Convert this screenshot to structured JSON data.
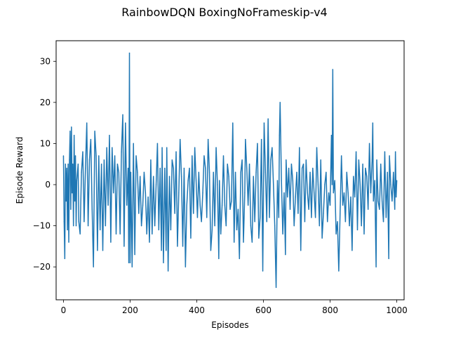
{
  "chart_data": {
    "type": "line",
    "title": "RainbowDQN  BoxingNoFrameskip-v4",
    "xlabel": "Episodes",
    "ylabel": "Episode Reward",
    "xlim": [
      -22,
      1022
    ],
    "ylim": [
      -28,
      35
    ],
    "x_ticks": [
      0,
      200,
      400,
      600,
      800,
      1000
    ],
    "y_ticks": [
      -20,
      -10,
      0,
      10,
      20,
      30
    ],
    "grid": false,
    "series": [
      {
        "color": "#1f77b4",
        "points": [
          [
            0,
            7
          ],
          [
            2,
            -9
          ],
          [
            4,
            -18
          ],
          [
            6,
            5
          ],
          [
            8,
            -4
          ],
          [
            10,
            4
          ],
          [
            12,
            -11
          ],
          [
            14,
            5
          ],
          [
            16,
            -14
          ],
          [
            18,
            6
          ],
          [
            20,
            13
          ],
          [
            22,
            -6
          ],
          [
            24,
            14
          ],
          [
            26,
            -2
          ],
          [
            28,
            5
          ],
          [
            30,
            -10
          ],
          [
            32,
            12
          ],
          [
            34,
            -4
          ],
          [
            36,
            7
          ],
          [
            38,
            -10
          ],
          [
            40,
            1
          ],
          [
            44,
            5
          ],
          [
            46,
            -9
          ],
          [
            50,
            -12
          ],
          [
            54,
            3
          ],
          [
            58,
            8
          ],
          [
            62,
            -9
          ],
          [
            66,
            4
          ],
          [
            70,
            15
          ],
          [
            74,
            -10
          ],
          [
            78,
            6
          ],
          [
            82,
            11
          ],
          [
            86,
            -6
          ],
          [
            90,
            -20
          ],
          [
            94,
            13
          ],
          [
            98,
            7
          ],
          [
            102,
            -16
          ],
          [
            106,
            7
          ],
          [
            110,
            -11
          ],
          [
            114,
            5
          ],
          [
            118,
            -16
          ],
          [
            122,
            6
          ],
          [
            126,
            -10
          ],
          [
            130,
            9
          ],
          [
            134,
            -5
          ],
          [
            138,
            12
          ],
          [
            142,
            -14
          ],
          [
            146,
            9
          ],
          [
            150,
            -2
          ],
          [
            154,
            7
          ],
          [
            158,
            -12
          ],
          [
            162,
            5
          ],
          [
            166,
            3
          ],
          [
            170,
            -12
          ],
          [
            174,
            8
          ],
          [
            178,
            17
          ],
          [
            182,
            -15
          ],
          [
            186,
            15
          ],
          [
            190,
            -5
          ],
          [
            194,
            4
          ],
          [
            196,
            -19
          ],
          [
            198,
            32
          ],
          [
            200,
            -19
          ],
          [
            202,
            3
          ],
          [
            206,
            -20
          ],
          [
            210,
            10
          ],
          [
            214,
            -17
          ],
          [
            218,
            7
          ],
          [
            222,
            3
          ],
          [
            226,
            -7
          ],
          [
            230,
            2
          ],
          [
            234,
            -10
          ],
          [
            238,
            -5
          ],
          [
            242,
            3
          ],
          [
            246,
            -2
          ],
          [
            250,
            -12
          ],
          [
            254,
            -3
          ],
          [
            258,
            -14
          ],
          [
            262,
            6
          ],
          [
            266,
            -12
          ],
          [
            270,
            2
          ],
          [
            274,
            -10
          ],
          [
            278,
            0
          ],
          [
            282,
            10
          ],
          [
            286,
            -11
          ],
          [
            290,
            4
          ],
          [
            294,
            -16
          ],
          [
            296,
            9
          ],
          [
            300,
            -19
          ],
          [
            304,
            4
          ],
          [
            308,
            -16
          ],
          [
            310,
            9
          ],
          [
            314,
            -21
          ],
          [
            318,
            2
          ],
          [
            322,
            -11
          ],
          [
            326,
            6
          ],
          [
            330,
            4
          ],
          [
            334,
            -7
          ],
          [
            338,
            8
          ],
          [
            342,
            -15
          ],
          [
            346,
            -2
          ],
          [
            350,
            11
          ],
          [
            354,
            2
          ],
          [
            358,
            -15
          ],
          [
            362,
            4
          ],
          [
            366,
            -20
          ],
          [
            370,
            -5
          ],
          [
            374,
            1
          ],
          [
            378,
            4
          ],
          [
            382,
            -13
          ],
          [
            386,
            7
          ],
          [
            390,
            -7
          ],
          [
            394,
            9
          ],
          [
            398,
            1
          ],
          [
            402,
            -8
          ],
          [
            406,
            3
          ],
          [
            410,
            -5
          ],
          [
            414,
            -9
          ],
          [
            418,
            -2
          ],
          [
            422,
            7
          ],
          [
            426,
            4
          ],
          [
            430,
            -8
          ],
          [
            434,
            11
          ],
          [
            438,
            3
          ],
          [
            442,
            -16
          ],
          [
            446,
            -11
          ],
          [
            450,
            3
          ],
          [
            454,
            -10
          ],
          [
            458,
            9
          ],
          [
            462,
            0
          ],
          [
            466,
            -18
          ],
          [
            468,
            1
          ],
          [
            472,
            -12
          ],
          [
            476,
            -5
          ],
          [
            480,
            7
          ],
          [
            484,
            -5
          ],
          [
            488,
            -10
          ],
          [
            492,
            5
          ],
          [
            496,
            2
          ],
          [
            500,
            -6
          ],
          [
            504,
            -4
          ],
          [
            508,
            15
          ],
          [
            512,
            -14
          ],
          [
            516,
            3
          ],
          [
            520,
            -11
          ],
          [
            524,
            -6
          ],
          [
            528,
            -18
          ],
          [
            532,
            3
          ],
          [
            536,
            6
          ],
          [
            540,
            -14
          ],
          [
            544,
            -2
          ],
          [
            546,
            11
          ],
          [
            550,
            4
          ],
          [
            554,
            -5
          ],
          [
            558,
            5
          ],
          [
            562,
            -10
          ],
          [
            566,
            -14
          ],
          [
            570,
            2
          ],
          [
            574,
            -9
          ],
          [
            578,
            3
          ],
          [
            582,
            10
          ],
          [
            586,
            -13
          ],
          [
            590,
            -8
          ],
          [
            594,
            11
          ],
          [
            598,
            -21
          ],
          [
            602,
            15
          ],
          [
            606,
            3
          ],
          [
            610,
            -9
          ],
          [
            614,
            16
          ],
          [
            618,
            -8
          ],
          [
            622,
            6
          ],
          [
            626,
            9
          ],
          [
            630,
            0
          ],
          [
            634,
            -10
          ],
          [
            638,
            -25
          ],
          [
            642,
            1
          ],
          [
            646,
            -8
          ],
          [
            648,
            12
          ],
          [
            650,
            20
          ],
          [
            654,
            1
          ],
          [
            658,
            -12
          ],
          [
            662,
            -2
          ],
          [
            666,
            -17
          ],
          [
            668,
            6
          ],
          [
            672,
            -3
          ],
          [
            676,
            4
          ],
          [
            680,
            -6
          ],
          [
            684,
            5
          ],
          [
            688,
            1
          ],
          [
            692,
            -10
          ],
          [
            696,
            -3
          ],
          [
            700,
            3
          ],
          [
            704,
            -7
          ],
          [
            708,
            9
          ],
          [
            712,
            -16
          ],
          [
            716,
            4
          ],
          [
            720,
            5
          ],
          [
            724,
            -9
          ],
          [
            728,
            6
          ],
          [
            732,
            -2
          ],
          [
            736,
            -6
          ],
          [
            740,
            3
          ],
          [
            744,
            -8
          ],
          [
            748,
            4
          ],
          [
            752,
            -2
          ],
          [
            756,
            -8
          ],
          [
            760,
            9
          ],
          [
            764,
            0
          ],
          [
            768,
            -10
          ],
          [
            772,
            6
          ],
          [
            776,
            -13
          ],
          [
            780,
            -7
          ],
          [
            784,
            0
          ],
          [
            788,
            3
          ],
          [
            792,
            -9
          ],
          [
            796,
            -2
          ],
          [
            800,
            -5
          ],
          [
            804,
            12
          ],
          [
            806,
            0
          ],
          [
            808,
            28
          ],
          [
            810,
            -2
          ],
          [
            814,
            1
          ],
          [
            818,
            -12
          ],
          [
            822,
            -9
          ],
          [
            826,
            -21
          ],
          [
            830,
            -7
          ],
          [
            834,
            7
          ],
          [
            838,
            -5
          ],
          [
            842,
            -2
          ],
          [
            846,
            -9
          ],
          [
            850,
            3
          ],
          [
            854,
            -2
          ],
          [
            858,
            -10
          ],
          [
            862,
            -3
          ],
          [
            866,
            -16
          ],
          [
            870,
            2
          ],
          [
            874,
            -3
          ],
          [
            878,
            8
          ],
          [
            882,
            -11
          ],
          [
            886,
            6
          ],
          [
            890,
            0
          ],
          [
            894,
            -10
          ],
          [
            898,
            5
          ],
          [
            902,
            -12
          ],
          [
            906,
            4
          ],
          [
            910,
            2
          ],
          [
            914,
            -6
          ],
          [
            918,
            10
          ],
          [
            922,
            -2
          ],
          [
            926,
            6
          ],
          [
            928,
            15
          ],
          [
            930,
            -4
          ],
          [
            934,
            1
          ],
          [
            938,
            -20
          ],
          [
            940,
            6
          ],
          [
            944,
            -4
          ],
          [
            948,
            -6
          ],
          [
            952,
            5
          ],
          [
            956,
            -4
          ],
          [
            960,
            -9
          ],
          [
            964,
            8
          ],
          [
            968,
            -8
          ],
          [
            972,
            3
          ],
          [
            976,
            -18
          ],
          [
            978,
            7
          ],
          [
            982,
            0
          ],
          [
            986,
            -4
          ],
          [
            990,
            3
          ],
          [
            994,
            -6
          ],
          [
            996,
            8
          ],
          [
            998,
            -3
          ],
          [
            1000,
            1
          ]
        ]
      }
    ]
  }
}
